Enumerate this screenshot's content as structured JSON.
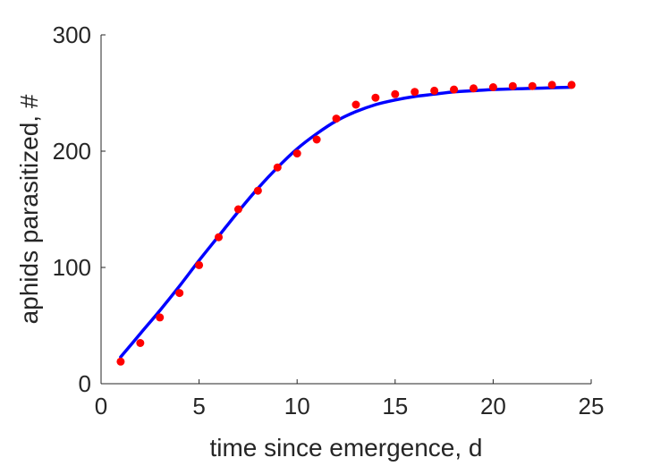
{
  "chart_data": {
    "type": "line",
    "title": "",
    "xlabel": "time since emergence, d",
    "ylabel": "aphids parasitized, #",
    "xlim": [
      0,
      25
    ],
    "ylim": [
      0,
      300
    ],
    "x_ticks": [
      0,
      5,
      10,
      15,
      20,
      25
    ],
    "y_ticks": [
      0,
      100,
      200,
      300
    ],
    "grid": false,
    "legend": "none",
    "colors": {
      "axis": "#262626",
      "model": "#0000ff",
      "observed": "#ff0000"
    },
    "series": [
      {
        "type": "line",
        "x": [
          1,
          2,
          3,
          4,
          5,
          6,
          7,
          8,
          9,
          10,
          11,
          12,
          13,
          14,
          15,
          16,
          17,
          18,
          19,
          20,
          21,
          22,
          23,
          24
        ],
        "values": [
          23,
          43,
          63,
          84,
          106,
          127,
          148,
          168,
          186,
          202,
          215,
          226,
          234,
          240,
          244,
          247,
          249,
          251,
          252,
          253,
          253.5,
          254,
          254.5,
          255
        ]
      },
      {
        "type": "scatter",
        "x": [
          1,
          2,
          3,
          4,
          5,
          6,
          7,
          8,
          9,
          10,
          11,
          12,
          13,
          14,
          15,
          16,
          17,
          18,
          19,
          20,
          21,
          22,
          23,
          24
        ],
        "values": [
          19,
          35,
          57,
          78,
          102,
          126,
          150,
          166,
          186,
          198,
          210,
          228,
          240,
          246,
          249,
          251,
          252,
          253,
          254,
          255,
          256,
          256,
          257,
          257
        ]
      }
    ]
  }
}
